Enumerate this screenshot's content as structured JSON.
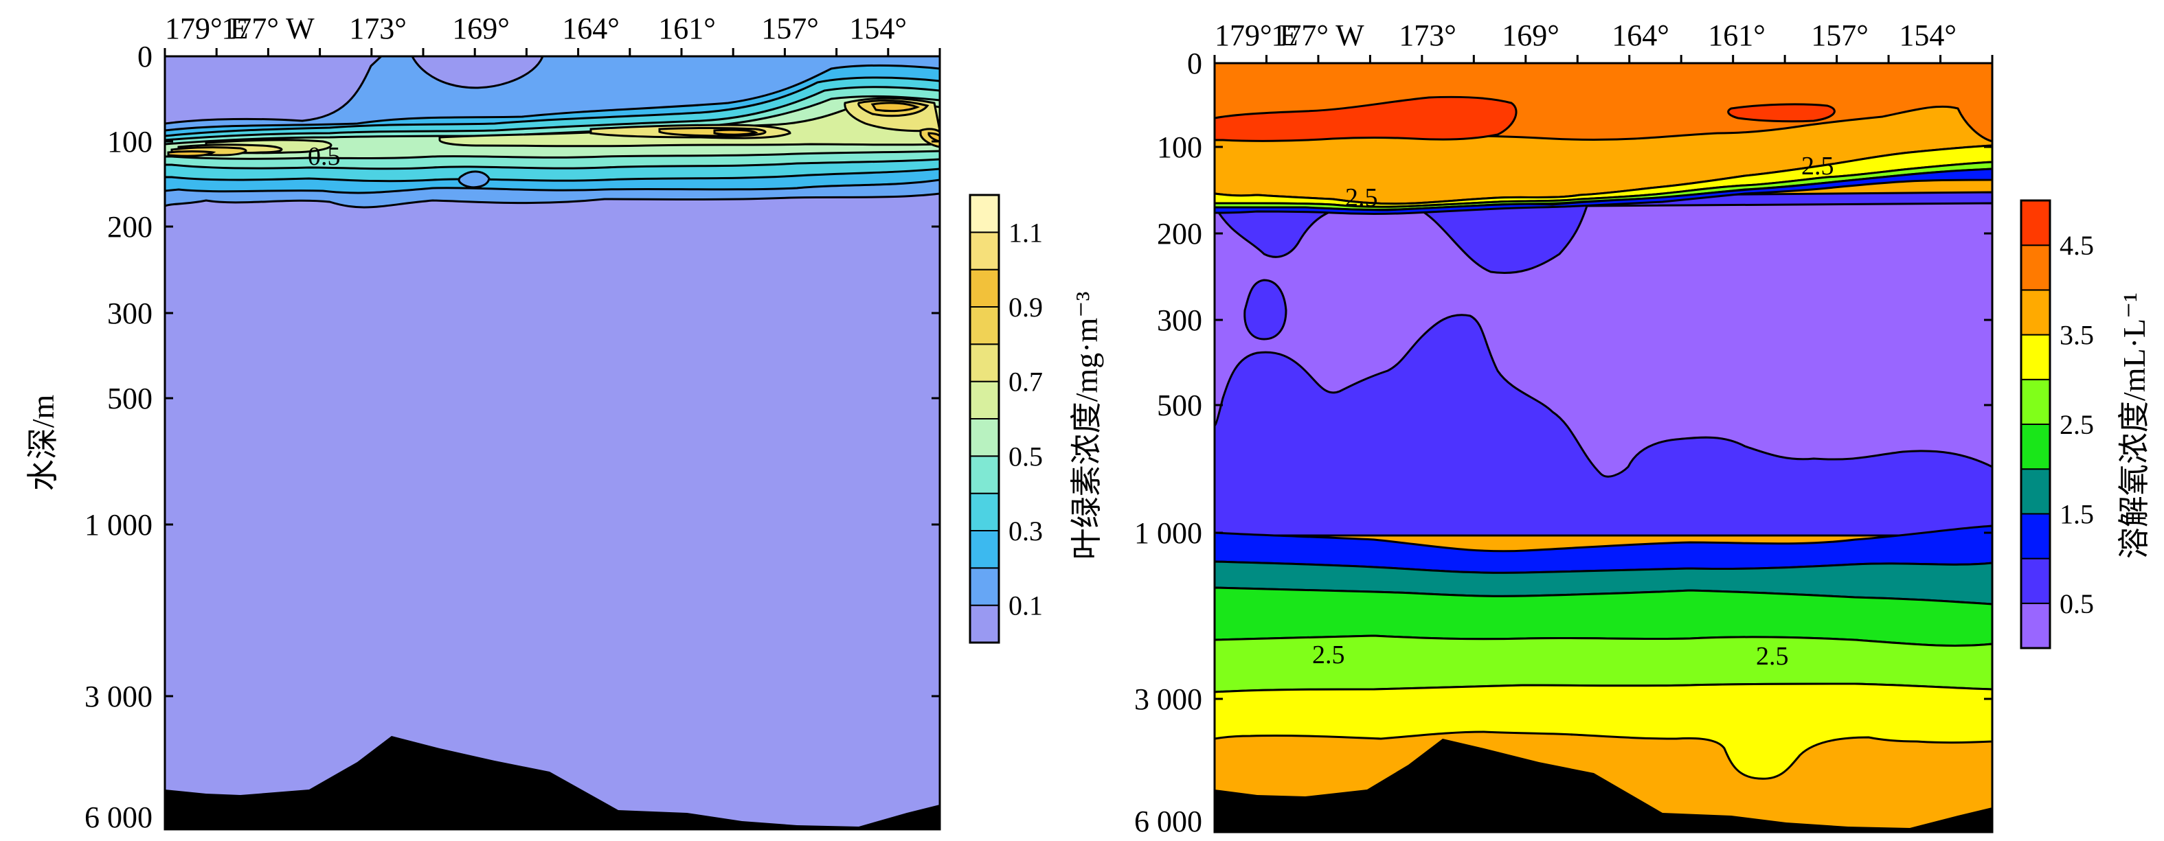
{
  "chart_data": [
    {
      "type": "heatmap",
      "title": "",
      "xlabel": "",
      "ylabel": "水深/m",
      "x_tick_labels": [
        "179° E",
        "177° W",
        "173°",
        "169°",
        "164°",
        "161°",
        "157°",
        "154°"
      ],
      "y_ticks": [
        0,
        100,
        200,
        300,
        500,
        1000,
        3000,
        6000
      ],
      "y_tick_labels": [
        "0",
        "100",
        "200",
        "300",
        "500",
        "1 000",
        "3 000",
        "6 000"
      ],
      "colorbar": {
        "label": "叶绿素浓度/mg·m⁻³",
        "tick_labels": [
          "0.1",
          "0.3",
          "0.5",
          "0.7",
          "0.9",
          "1.1"
        ],
        "levels": [
          0,
          0.1,
          0.2,
          0.3,
          0.4,
          0.5,
          0.6,
          0.7,
          0.8,
          0.9,
          1.0,
          1.1,
          1.2
        ],
        "colors": [
          "#9999f2",
          "#66a6f5",
          "#3cb9ef",
          "#4dd2e3",
          "#7fe8d3",
          "#b8f2c0",
          "#d8f09e",
          "#ece47d",
          "#f0d255",
          "#f2c13a",
          "#f6e07a",
          "#fff6ba"
        ]
      },
      "contour_labels": [
        "0.5"
      ]
    },
    {
      "type": "heatmap",
      "title": "",
      "xlabel": "",
      "ylabel": "",
      "x_tick_labels": [
        "179° E",
        "177° W",
        "173°",
        "169°",
        "164°",
        "161°",
        "157°",
        "154°"
      ],
      "y_ticks": [
        0,
        100,
        200,
        300,
        500,
        1000,
        3000,
        6000
      ],
      "y_tick_labels": [
        "0",
        "100",
        "200",
        "300",
        "500",
        "1 000",
        "3 000",
        "6 000"
      ],
      "colorbar": {
        "label": "溶解氧浓度/mL·L⁻¹",
        "tick_labels": [
          "0.5",
          "1.5",
          "2.5",
          "3.5",
          "4.5"
        ],
        "levels": [
          0,
          0.5,
          1.0,
          1.5,
          2.0,
          2.5,
          3.0,
          3.5,
          4.0,
          4.5,
          5.0
        ],
        "colors": [
          "#9966ff",
          "#4d33ff",
          "#0019ff",
          "#008c82",
          "#19e619",
          "#80ff19",
          "#ffff00",
          "#ffaa00",
          "#ff7a00",
          "#ff3a00"
        ]
      },
      "contour_labels": [
        "2.5",
        "2.5",
        "2.5",
        "2.5"
      ]
    }
  ]
}
